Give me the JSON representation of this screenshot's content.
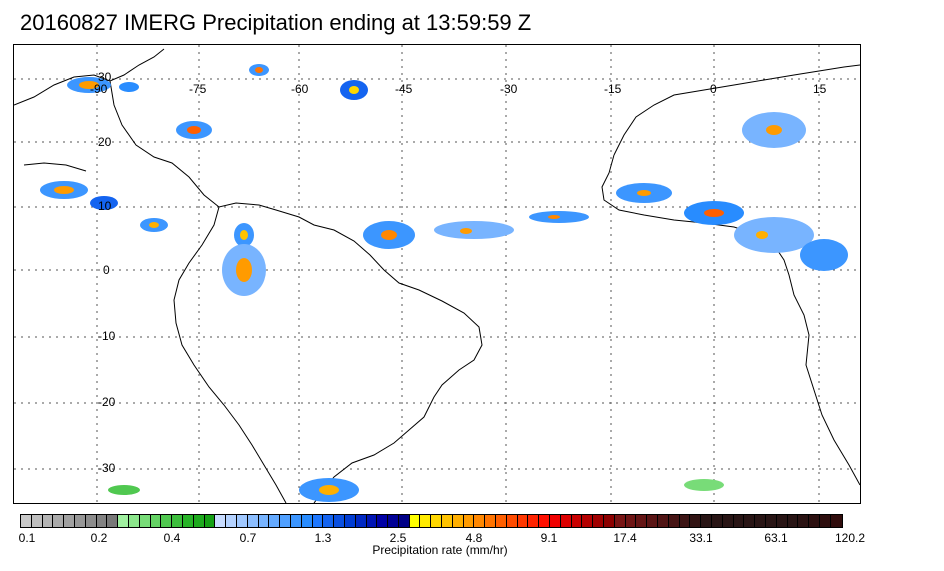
{
  "title": "20160827 IMERG Precipitation ending at 13:59:59 Z",
  "map": {
    "longitude_labels": [
      "-90",
      "-75",
      "-60",
      "-45",
      "-30",
      "-15",
      "0",
      "15"
    ],
    "latitude_labels": [
      "30",
      "20",
      "10",
      "0",
      "-10",
      "-20",
      "-30"
    ]
  },
  "colorbar": {
    "label": "Precipitation rate (mm/hr)",
    "tick_labels": [
      "0.1",
      "0.2",
      "0.4",
      "0.7",
      "1.3",
      "2.5",
      "4.8",
      "9.1",
      "17.4",
      "33.1",
      "63.1",
      "120.2"
    ],
    "colors": [
      "#c8c8c8",
      "#bebebe",
      "#b4b4b4",
      "#aaaaaa",
      "#a0a0a0",
      "#969696",
      "#8c8c8c",
      "#828282",
      "#787878",
      "#a0f0a0",
      "#8ce68c",
      "#78dc78",
      "#64d264",
      "#50c850",
      "#3cbe3c",
      "#28b428",
      "#1eaa1e",
      "#14a014",
      "#c8dcff",
      "#b4d2ff",
      "#a0c8ff",
      "#8cbeff",
      "#78b4ff",
      "#64aaff",
      "#50a0ff",
      "#3c96ff",
      "#288cff",
      "#1e78ff",
      "#1464f0",
      "#0a50e1",
      "#003cd2",
      "#0028c3",
      "#0014b4",
      "#0000a5",
      "#000096",
      "#000087",
      "#ffff00",
      "#ffeb00",
      "#ffd700",
      "#ffc300",
      "#ffaf00",
      "#ff9b00",
      "#ff8700",
      "#ff7300",
      "#ff5f00",
      "#ff4b00",
      "#ff3700",
      "#ff2300",
      "#ff0f00",
      "#f00000",
      "#dc0000",
      "#c80000",
      "#b40000",
      "#a00000",
      "#8c0000",
      "#781414",
      "#6e1414",
      "#641414",
      "#5a1414",
      "#501414",
      "#461414",
      "#3c1414",
      "#321414",
      "#281414",
      "#281414",
      "#281414",
      "#281414",
      "#281414",
      "#281414",
      "#281414",
      "#281414",
      "#281414",
      "#2a1212",
      "#2c1010",
      "#2e0e0e",
      "#300c0c"
    ]
  }
}
